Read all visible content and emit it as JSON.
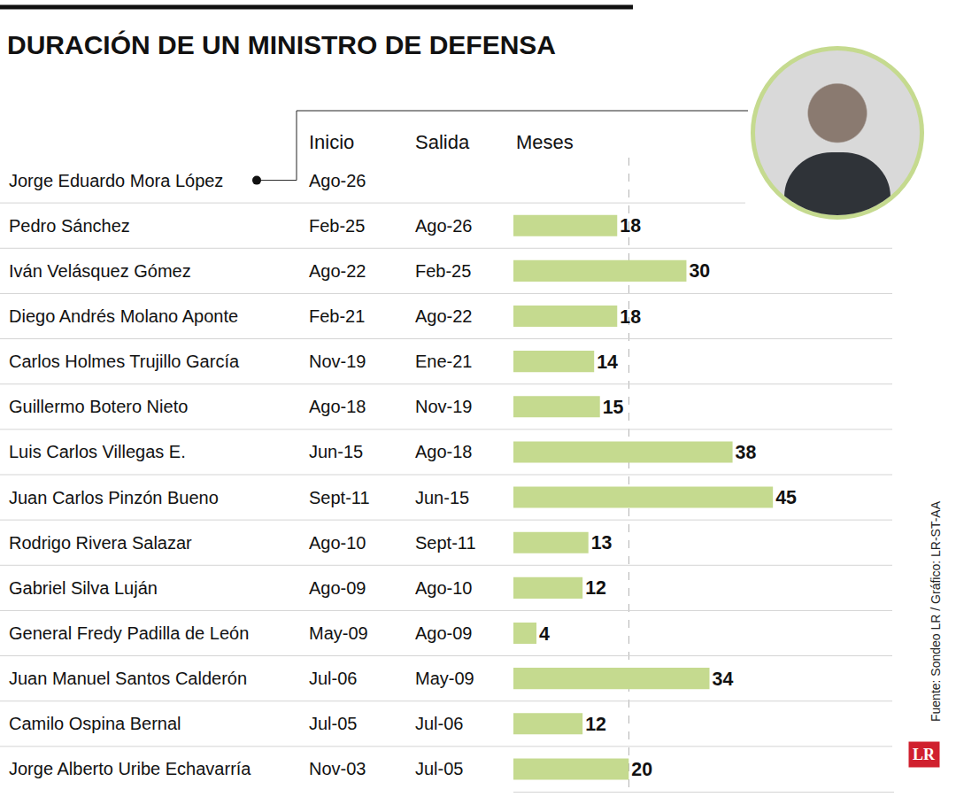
{
  "chart_data": {
    "type": "bar",
    "title": "DURACIÓN DE UN MINISTRO DE DEFENSA",
    "orientation": "horizontal",
    "columns": [
      "Inicio",
      "Salida",
      "Meses"
    ],
    "categories": [
      "Jorge Eduardo Mora López",
      "Pedro Sánchez",
      "Iván Velásquez Gómez",
      "Diego Andrés Molano Aponte",
      "Carlos Holmes Trujillo García",
      "Guillermo Botero Nieto",
      "Luis Carlos Villegas E.",
      "Juan Carlos Pinzón Bueno",
      "Rodrigo Rivera Salazar",
      "Gabriel Silva Luján",
      "General Fredy Padilla de León",
      "Juan Manuel Santos Calderón",
      "Camilo Ospina Bernal",
      "Jorge Alberto Uribe Echavarría"
    ],
    "inicio": [
      "Ago-26",
      "Feb-25",
      "Ago-22",
      "Feb-21",
      "Nov-19",
      "Ago-18",
      "Jun-15",
      "Sept-11",
      "Ago-10",
      "Ago-09",
      "May-09",
      "Jul-06",
      "Jul-05",
      "Nov-03"
    ],
    "salida": [
      null,
      "Ago-26",
      "Feb-25",
      "Ago-22",
      "Ene-21",
      "Nov-19",
      "Ago-18",
      "Jun-15",
      "Sept-11",
      "Ago-10",
      "Ago-09",
      "May-09",
      "Jul-06",
      "Jul-05"
    ],
    "values": [
      null,
      18,
      30,
      18,
      14,
      15,
      38,
      45,
      13,
      12,
      4,
      34,
      12,
      20
    ],
    "color": "#c5da8f",
    "xlim": [
      0,
      66
    ],
    "xticks": [
      20
    ],
    "grid": true,
    "tick_labels": false,
    "data_labels": true,
    "source": "Fuente: Sondeo LR / Gráfico: LR-ST-AA",
    "logo": "LR"
  }
}
